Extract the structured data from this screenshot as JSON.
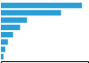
{
  "chart_data": {
    "type": "bar",
    "orientation": "horizontal",
    "categories": [
      null,
      null,
      null,
      null,
      null,
      null,
      null,
      null
    ],
    "values": [
      93,
      69,
      30,
      22,
      14,
      8,
      5,
      3
    ],
    "color": "#2a9fd6",
    "xlim": [
      0,
      100
    ],
    "grid": false,
    "tick_labels": false
  }
}
